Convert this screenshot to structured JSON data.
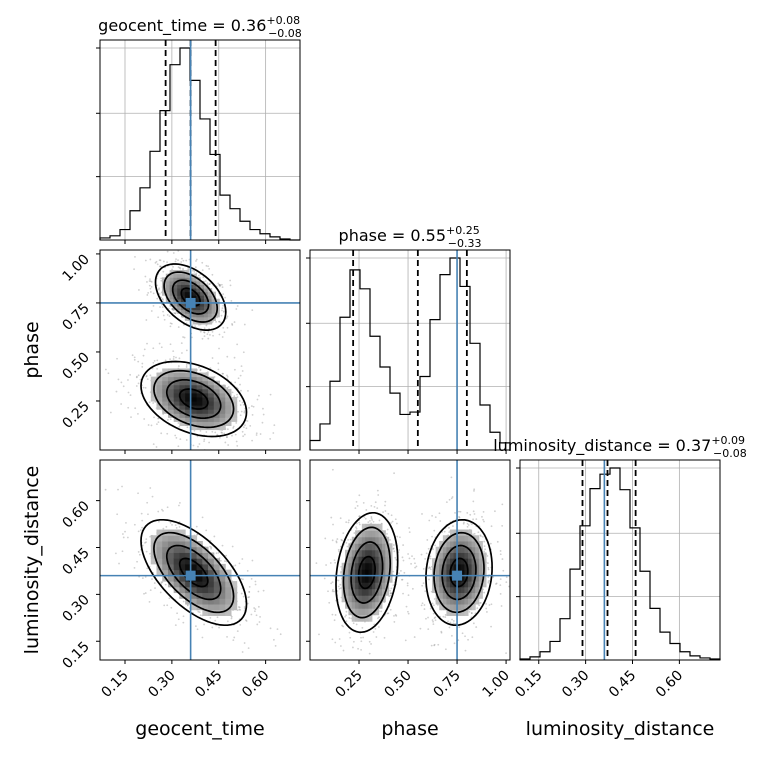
{
  "chart_data": {
    "type": "corner",
    "parameters": [
      "geocent_time",
      "phase",
      "luminosity_distance"
    ],
    "truths": {
      "geocent_time": 0.36,
      "phase": 0.75,
      "luminosity_distance": 0.36
    },
    "ranges": {
      "geocent_time": [
        0.07,
        0.71
      ],
      "phase": [
        0.0,
        1.02
      ],
      "luminosity_distance": [
        0.09,
        0.73
      ]
    },
    "ticks": {
      "geocent_time": [
        0.15,
        0.3,
        0.45,
        0.6
      ],
      "phase": [
        0.25,
        0.5,
        0.75,
        1.0
      ],
      "luminosity_distance": [
        0.15,
        0.3,
        0.45,
        0.6
      ]
    },
    "titles": [
      {
        "param": "geocent_time",
        "text": "geocent_time = 0.36",
        "plus": "+0.08",
        "minus": "−0.08",
        "median": 0.36,
        "lo": 0.28,
        "hi": 0.44
      },
      {
        "param": "phase",
        "text": "phase = 0.55",
        "plus": "+0.25",
        "minus": "−0.33",
        "median": 0.55,
        "lo": 0.22,
        "hi": 0.8
      },
      {
        "param": "luminosity_distance",
        "text": "luminosity_distance = 0.37",
        "plus": "+0.09",
        "minus": "−0.08",
        "median": 0.37,
        "lo": 0.29,
        "hi": 0.46
      }
    ],
    "histograms": {
      "geocent_time": {
        "edges": [
          0.07,
          0.102,
          0.134,
          0.166,
          0.198,
          0.23,
          0.262,
          0.294,
          0.326,
          0.358,
          0.39,
          0.422,
          0.454,
          0.486,
          0.518,
          0.55,
          0.582,
          0.614,
          0.646,
          0.678,
          0.71
        ],
        "counts": [
          2,
          4,
          10,
          28,
          50,
          85,
          124,
          168,
          184,
          153,
          116,
          82,
          43,
          30,
          18,
          10,
          6,
          3,
          1,
          0
        ]
      },
      "phase": {
        "edges": [
          0.0,
          0.051,
          0.102,
          0.153,
          0.204,
          0.255,
          0.306,
          0.357,
          0.408,
          0.459,
          0.51,
          0.561,
          0.612,
          0.663,
          0.714,
          0.765,
          0.816,
          0.867,
          0.918,
          0.969,
          1.02
        ],
        "counts": [
          8,
          22,
          58,
          112,
          152,
          136,
          96,
          70,
          48,
          30,
          32,
          62,
          110,
          148,
          162,
          138,
          90,
          38,
          15,
          6
        ]
      },
      "luminosity_distance": {
        "edges": [
          0.09,
          0.122,
          0.154,
          0.186,
          0.218,
          0.25,
          0.282,
          0.314,
          0.346,
          0.378,
          0.41,
          0.442,
          0.474,
          0.506,
          0.538,
          0.57,
          0.602,
          0.634,
          0.666,
          0.698,
          0.73
        ],
        "counts": [
          1,
          3,
          8,
          18,
          40,
          88,
          130,
          166,
          180,
          186,
          165,
          128,
          86,
          50,
          27,
          16,
          8,
          4,
          2,
          1
        ]
      }
    },
    "grid": true
  }
}
